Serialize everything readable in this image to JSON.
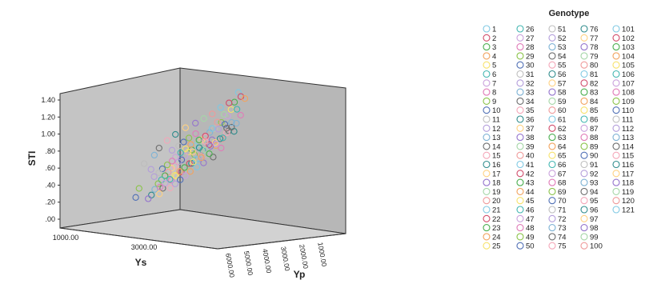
{
  "chart_data": {
    "type": "scatter3d",
    "title": "",
    "zlabel": "STI",
    "xlabel": "Ys",
    "ylabel": "Yp",
    "z_ticks": [
      ".00",
      ".20",
      ".40",
      ".60",
      ".80",
      "1.00",
      "1.20",
      "1.40"
    ],
    "x_ticks": [
      "1000.00",
      "3000.00"
    ],
    "y_ticks": [
      "1000.00",
      "2000.00",
      "3000.00",
      "4000.00",
      "5000.00",
      "6000.00"
    ],
    "legend_title": "Genotype",
    "grid": false,
    "background_wall_color": "#b7b7b7",
    "floor_color": "#d2d2d2",
    "palette": [
      "#7ec8e3",
      "#d14b6a",
      "#4caf50",
      "#f2a35e",
      "#f7e26b",
      "#3fb5b0",
      "#c9a0dc",
      "#e07bb8",
      "#8bc34a",
      "#4f6fb5",
      "#bdbdbd",
      "#b39ddb",
      "#7fb3d5",
      "#6d6d6d",
      "#f4a6b8",
      "#2e8b8b",
      "#ffd180",
      "#9575cd",
      "#a5d6a7",
      "#ef9a9a"
    ],
    "series_names": [
      "1",
      "2",
      "3",
      "4",
      "5",
      "6",
      "7",
      "8",
      "9",
      "10",
      "11",
      "12",
      "13",
      "14",
      "15",
      "16",
      "17",
      "18",
      "19",
      "20",
      "21",
      "22",
      "23",
      "24",
      "25",
      "26",
      "27",
      "28",
      "29",
      "30",
      "31",
      "32",
      "33",
      "34",
      "35",
      "36",
      "37",
      "38",
      "39",
      "40",
      "41",
      "42",
      "43",
      "44",
      "45",
      "46",
      "47",
      "48",
      "49",
      "50",
      "51",
      "52",
      "53",
      "54",
      "55",
      "56",
      "57",
      "58",
      "59",
      "60",
      "61",
      "62",
      "63",
      "64",
      "65",
      "66",
      "67",
      "68",
      "69",
      "70",
      "71",
      "72",
      "73",
      "74",
      "75",
      "76",
      "77",
      "78",
      "79",
      "80",
      "81",
      "82",
      "83",
      "84",
      "85",
      "86",
      "87",
      "88",
      "89",
      "90",
      "91",
      "92",
      "93",
      "94",
      "95",
      "96",
      "97",
      "98",
      "99",
      "100",
      "101",
      "102",
      "103",
      "104",
      "105",
      "106",
      "107",
      "108",
      "109",
      "110",
      "111",
      "112",
      "113",
      "114",
      "115",
      "116",
      "117",
      "118",
      "119",
      "120",
      "121"
    ],
    "points": [
      {
        "sx": 0.72,
        "sy": 0.55,
        "z": 1.4
      },
      {
        "sx": 0.74,
        "sy": 0.52,
        "z": 1.36
      },
      {
        "sx": 0.7,
        "sy": 0.5,
        "z": 1.3
      },
      {
        "sx": 0.76,
        "sy": 0.58,
        "z": 1.32
      },
      {
        "sx": 0.68,
        "sy": 0.48,
        "z": 1.22
      },
      {
        "sx": 0.71,
        "sy": 0.56,
        "z": 1.2
      },
      {
        "sx": 0.66,
        "sy": 0.46,
        "z": 1.15
      },
      {
        "sx": 0.73,
        "sy": 0.6,
        "z": 1.12
      },
      {
        "sx": 0.62,
        "sy": 0.44,
        "z": 1.08
      },
      {
        "sx": 0.64,
        "sy": 0.47,
        "z": 1.05
      },
      {
        "sx": 0.58,
        "sy": 0.4,
        "z": 1.02
      },
      {
        "sx": 0.6,
        "sy": 0.45,
        "z": 1.0
      },
      {
        "sx": 0.55,
        "sy": 0.38,
        "z": 0.98
      },
      {
        "sx": 0.66,
        "sy": 0.52,
        "z": 0.96
      },
      {
        "sx": 0.52,
        "sy": 0.4,
        "z": 0.92
      },
      {
        "sx": 0.69,
        "sy": 0.57,
        "z": 0.94
      },
      {
        "sx": 0.5,
        "sy": 0.36,
        "z": 0.9
      },
      {
        "sx": 0.56,
        "sy": 0.43,
        "z": 0.88
      },
      {
        "sx": 0.48,
        "sy": 0.34,
        "z": 0.86
      },
      {
        "sx": 0.62,
        "sy": 0.5,
        "z": 0.87
      },
      {
        "sx": 0.46,
        "sy": 0.32,
        "z": 0.84
      },
      {
        "sx": 0.54,
        "sy": 0.44,
        "z": 0.82
      },
      {
        "sx": 0.44,
        "sy": 0.3,
        "z": 0.8
      },
      {
        "sx": 0.58,
        "sy": 0.48,
        "z": 0.8
      },
      {
        "sx": 0.42,
        "sy": 0.28,
        "z": 0.78
      },
      {
        "sx": 0.5,
        "sy": 0.42,
        "z": 0.76
      },
      {
        "sx": 0.4,
        "sy": 0.26,
        "z": 0.74
      },
      {
        "sx": 0.61,
        "sy": 0.52,
        "z": 0.76
      },
      {
        "sx": 0.45,
        "sy": 0.38,
        "z": 0.72
      },
      {
        "sx": 0.38,
        "sy": 0.24,
        "z": 0.7
      },
      {
        "sx": 0.52,
        "sy": 0.46,
        "z": 0.7
      },
      {
        "sx": 0.36,
        "sy": 0.22,
        "z": 0.68
      },
      {
        "sx": 0.47,
        "sy": 0.42,
        "z": 0.66
      },
      {
        "sx": 0.56,
        "sy": 0.5,
        "z": 0.66
      },
      {
        "sx": 0.34,
        "sy": 0.2,
        "z": 0.64
      },
      {
        "sx": 0.43,
        "sy": 0.38,
        "z": 0.62
      },
      {
        "sx": 0.32,
        "sy": 0.18,
        "z": 0.62
      },
      {
        "sx": 0.5,
        "sy": 0.47,
        "z": 0.6
      },
      {
        "sx": 0.4,
        "sy": 0.34,
        "z": 0.58
      },
      {
        "sx": 0.3,
        "sy": 0.16,
        "z": 0.58
      },
      {
        "sx": 0.46,
        "sy": 0.44,
        "z": 0.56
      },
      {
        "sx": 0.37,
        "sy": 0.31,
        "z": 0.54
      },
      {
        "sx": 0.28,
        "sy": 0.15,
        "z": 0.54
      },
      {
        "sx": 0.42,
        "sy": 0.4,
        "z": 0.52
      },
      {
        "sx": 0.34,
        "sy": 0.28,
        "z": 0.5
      },
      {
        "sx": 0.26,
        "sy": 0.12,
        "z": 0.5
      },
      {
        "sx": 0.39,
        "sy": 0.37,
        "z": 0.48
      },
      {
        "sx": 0.31,
        "sy": 0.25,
        "z": 0.46
      },
      {
        "sx": 0.24,
        "sy": 0.1,
        "z": 0.46
      },
      {
        "sx": 0.36,
        "sy": 0.34,
        "z": 0.44
      },
      {
        "sx": 0.28,
        "sy": 0.22,
        "z": 0.42
      },
      {
        "sx": 0.33,
        "sy": 0.31,
        "z": 0.4
      },
      {
        "sx": 0.22,
        "sy": 0.08,
        "z": 0.4
      },
      {
        "sx": 0.26,
        "sy": 0.2,
        "z": 0.38
      },
      {
        "sx": 0.3,
        "sy": 0.28,
        "z": 0.36
      },
      {
        "sx": 0.2,
        "sy": 0.06,
        "z": 0.34
      },
      {
        "sx": 0.24,
        "sy": 0.18,
        "z": 0.32
      },
      {
        "sx": 0.18,
        "sy": 0.05,
        "z": 0.3
      },
      {
        "sx": 0.64,
        "sy": 0.42,
        "z": 1.18
      },
      {
        "sx": 0.6,
        "sy": 0.38,
        "z": 1.1
      },
      {
        "sx": 0.57,
        "sy": 0.33,
        "z": 1.04
      },
      {
        "sx": 0.53,
        "sy": 0.3,
        "z": 0.96
      },
      {
        "sx": 0.49,
        "sy": 0.28,
        "z": 0.92
      },
      {
        "sx": 0.44,
        "sy": 0.24,
        "z": 0.88
      },
      {
        "sx": 0.41,
        "sy": 0.2,
        "z": 0.84
      },
      {
        "sx": 0.38,
        "sy": 0.18,
        "z": 0.8
      },
      {
        "sx": 0.35,
        "sy": 0.14,
        "z": 0.76
      },
      {
        "sx": 0.33,
        "sy": 0.12,
        "z": 0.72
      },
      {
        "sx": 0.3,
        "sy": 0.1,
        "z": 0.68
      },
      {
        "sx": 0.27,
        "sy": 0.08,
        "z": 0.64
      },
      {
        "sx": 0.25,
        "sy": 0.06,
        "z": 0.6
      },
      {
        "sx": 0.22,
        "sy": 0.04,
        "z": 0.56
      },
      {
        "sx": 0.7,
        "sy": 0.62,
        "z": 1.02
      },
      {
        "sx": 0.67,
        "sy": 0.6,
        "z": 0.98
      },
      {
        "sx": 0.64,
        "sy": 0.58,
        "z": 0.92
      },
      {
        "sx": 0.6,
        "sy": 0.55,
        "z": 0.86
      },
      {
        "sx": 0.57,
        "sy": 0.53,
        "z": 0.82
      },
      {
        "sx": 0.54,
        "sy": 0.52,
        "z": 0.78
      },
      {
        "sx": 0.51,
        "sy": 0.5,
        "z": 0.74
      },
      {
        "sx": 0.48,
        "sy": 0.48,
        "z": 0.68
      },
      {
        "sx": 0.45,
        "sy": 0.47,
        "z": 0.64
      },
      {
        "sx": 0.41,
        "sy": 0.44,
        "z": 0.6
      },
      {
        "sx": 0.38,
        "sy": 0.42,
        "z": 0.56
      },
      {
        "sx": 0.35,
        "sy": 0.4,
        "z": 0.52
      },
      {
        "sx": 0.32,
        "sy": 0.38,
        "z": 0.48
      },
      {
        "sx": 0.29,
        "sy": 0.36,
        "z": 0.44
      },
      {
        "sx": 0.26,
        "sy": 0.34,
        "z": 0.4
      },
      {
        "sx": 0.23,
        "sy": 0.32,
        "z": 0.36
      },
      {
        "sx": 0.12,
        "sy": 0.05,
        "z": 0.42
      },
      {
        "sx": 0.1,
        "sy": 0.03,
        "z": 0.32
      },
      {
        "sx": 0.15,
        "sy": 0.08,
        "z": 0.7
      },
      {
        "sx": 0.19,
        "sy": 0.13,
        "z": 0.62
      },
      {
        "sx": 0.21,
        "sy": 0.15,
        "z": 0.78
      },
      {
        "sx": 0.24,
        "sy": 0.16,
        "z": 0.86
      },
      {
        "sx": 0.29,
        "sy": 0.19,
        "z": 0.94
      },
      {
        "sx": 0.34,
        "sy": 0.23,
        "z": 1.0
      },
      {
        "sx": 0.4,
        "sy": 0.29,
        "z": 1.06
      },
      {
        "sx": 0.46,
        "sy": 0.34,
        "z": 1.1
      },
      {
        "sx": 0.51,
        "sy": 0.39,
        "z": 1.14
      },
      {
        "sx": 0.56,
        "sy": 0.44,
        "z": 1.18
      },
      {
        "sx": 0.61,
        "sy": 0.49,
        "z": 1.24
      },
      {
        "sx": 0.66,
        "sy": 0.54,
        "z": 1.28
      },
      {
        "sx": 0.55,
        "sy": 0.35,
        "z": 0.74
      },
      {
        "sx": 0.5,
        "sy": 0.33,
        "z": 0.7
      },
      {
        "sx": 0.45,
        "sy": 0.3,
        "z": 0.66
      },
      {
        "sx": 0.63,
        "sy": 0.44,
        "z": 0.9
      },
      {
        "sx": 0.59,
        "sy": 0.4,
        "z": 0.84
      },
      {
        "sx": 0.47,
        "sy": 0.26,
        "z": 1.0
      },
      {
        "sx": 0.43,
        "sy": 0.22,
        "z": 0.96
      },
      {
        "sx": 0.39,
        "sy": 0.27,
        "z": 0.9
      },
      {
        "sx": 0.36,
        "sy": 0.25,
        "z": 0.86
      },
      {
        "sx": 0.32,
        "sy": 0.21,
        "z": 0.82
      },
      {
        "sx": 0.68,
        "sy": 0.51,
        "z": 1.06
      },
      {
        "sx": 0.65,
        "sy": 0.49,
        "z": 1.0
      },
      {
        "sx": 0.52,
        "sy": 0.37,
        "z": 0.88
      },
      {
        "sx": 0.48,
        "sy": 0.39,
        "z": 0.8
      },
      {
        "sx": 0.44,
        "sy": 0.36,
        "z": 0.76
      }
    ]
  }
}
